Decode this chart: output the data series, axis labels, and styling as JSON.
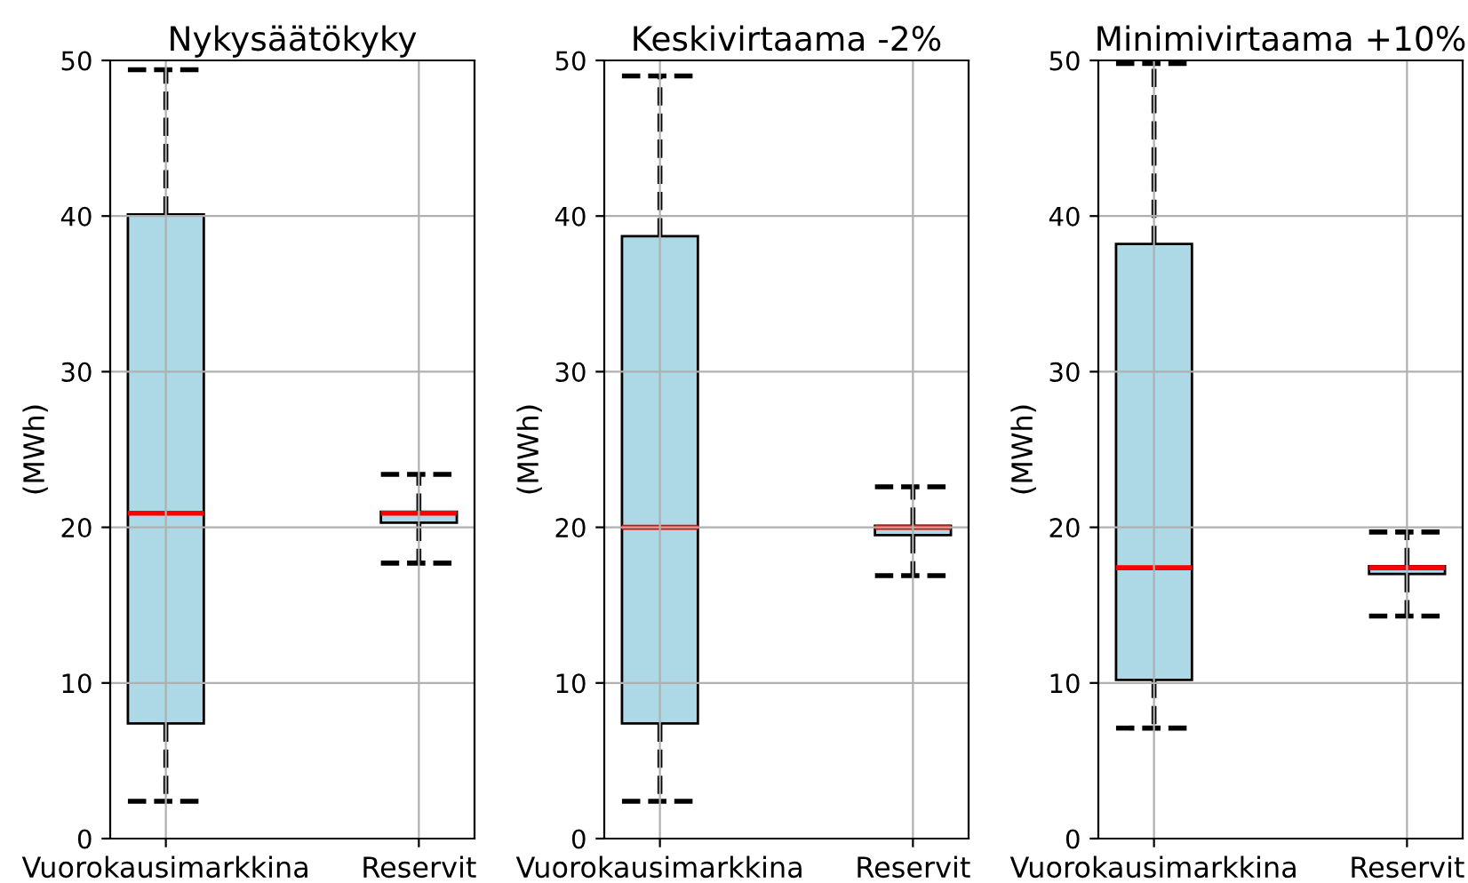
{
  "chart_data": [
    {
      "type": "box",
      "title": "Nykysäätökyky",
      "ylabel": "(MWh)",
      "categories": [
        "Vuorokausimarkkina",
        "Reservit"
      ],
      "color": "#add8e6",
      "line_style": "dashed",
      "grid": true,
      "ylim": [
        0,
        50
      ],
      "yticks": [
        0,
        10,
        20,
        30,
        40,
        50
      ],
      "boxes": [
        {
          "low": 2.4,
          "q1": 7.4,
          "median": 20.9,
          "q3": 40.1,
          "high": 49.4
        },
        {
          "low": 17.7,
          "q1": 20.3,
          "median": 20.9,
          "q3": 21.0,
          "high": 23.4
        }
      ]
    },
    {
      "type": "box",
      "title": "Keskivirtaama -2%",
      "ylabel": "(MWh)",
      "categories": [
        "Vuorokausimarkkina",
        "Reservit"
      ],
      "color": "#add8e6",
      "line_style": "dashed",
      "grid": true,
      "ylim": [
        0,
        50
      ],
      "yticks": [
        0,
        10,
        20,
        30,
        40,
        50
      ],
      "boxes": [
        {
          "low": 2.4,
          "q1": 7.4,
          "median": 20.0,
          "q3": 38.7,
          "high": 49.0
        },
        {
          "low": 16.9,
          "q1": 19.5,
          "median": 20.0,
          "q3": 20.1,
          "high": 22.6
        }
      ]
    },
    {
      "type": "box",
      "title": "Minimivirtaama +10%",
      "ylabel": "(MWh)",
      "categories": [
        "Vuorokausimarkkina",
        "Reservit"
      ],
      "color": "#add8e6",
      "line_style": "dashed",
      "grid": true,
      "ylim": [
        0,
        50
      ],
      "yticks": [
        0,
        10,
        20,
        30,
        40,
        50
      ],
      "boxes": [
        {
          "low": 7.1,
          "q1": 10.2,
          "median": 17.4,
          "q3": 38.2,
          "high": 49.8
        },
        {
          "low": 14.3,
          "q1": 17.0,
          "median": 17.4,
          "q3": 17.5,
          "high": 19.7
        }
      ]
    }
  ]
}
